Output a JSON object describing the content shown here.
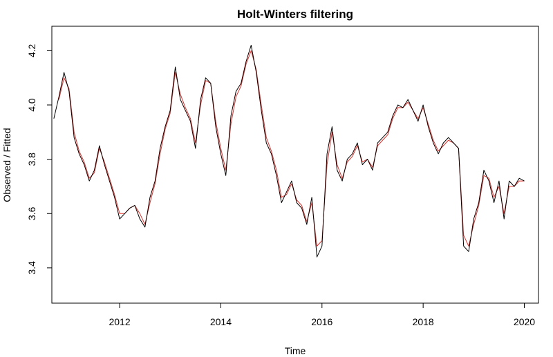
{
  "chart_data": {
    "type": "line",
    "title": "Holt-Winters filtering",
    "xlabel": "Time",
    "ylabel": "Observed / Fitted",
    "xlim": [
      2010.66,
      2020.28
    ],
    "ylim": [
      3.27,
      4.29
    ],
    "x_ticks": [
      2012,
      2014,
      2016,
      2018,
      2020
    ],
    "x_tick_labels": [
      "2012",
      "2014",
      "2016",
      "2018",
      "2020"
    ],
    "y_ticks": [
      3.4,
      3.6,
      3.8,
      4.0,
      4.2
    ],
    "y_tick_labels": [
      "3.4",
      "3.6",
      "3.8",
      "4.0",
      "4.2"
    ],
    "grid": false,
    "legend": "none",
    "series": [
      {
        "color": "#000000",
        "x": [
          2010.7,
          2010.8,
          2010.9,
          2011.0,
          2011.1,
          2011.2,
          2011.3,
          2011.4,
          2011.5,
          2011.6,
          2011.7,
          2011.8,
          2011.9,
          2012.0,
          2012.1,
          2012.2,
          2012.3,
          2012.4,
          2012.5,
          2012.6,
          2012.7,
          2012.8,
          2012.9,
          2013.0,
          2013.1,
          2013.2,
          2013.3,
          2013.4,
          2013.5,
          2013.6,
          2013.7,
          2013.8,
          2013.9,
          2014.0,
          2014.1,
          2014.2,
          2014.3,
          2014.4,
          2014.5,
          2014.6,
          2014.7,
          2014.8,
          2014.9,
          2015.0,
          2015.1,
          2015.2,
          2015.3,
          2015.4,
          2015.5,
          2015.6,
          2015.7,
          2015.8,
          2015.9,
          2016.0,
          2016.1,
          2016.2,
          2016.3,
          2016.4,
          2016.5,
          2016.6,
          2016.7,
          2016.8,
          2016.9,
          2017.0,
          2017.1,
          2017.2,
          2017.3,
          2017.4,
          2017.5,
          2017.6,
          2017.7,
          2017.8,
          2017.9,
          2018.0,
          2018.1,
          2018.2,
          2018.3,
          2018.4,
          2018.5,
          2018.6,
          2018.7,
          2018.8,
          2018.9,
          2019.0,
          2019.1,
          2019.2,
          2019.3,
          2019.4,
          2019.5,
          2019.6,
          2019.7,
          2019.8,
          2019.9,
          2020.0
        ],
        "values": [
          3.95,
          4.03,
          4.12,
          4.05,
          3.88,
          3.82,
          3.78,
          3.72,
          3.76,
          3.85,
          3.78,
          3.72,
          3.66,
          3.58,
          3.6,
          3.62,
          3.63,
          3.58,
          3.55,
          3.66,
          3.72,
          3.84,
          3.92,
          3.98,
          4.14,
          4.02,
          3.98,
          3.94,
          3.84,
          4.02,
          4.1,
          4.08,
          3.92,
          3.82,
          3.74,
          3.96,
          4.05,
          4.08,
          4.16,
          4.22,
          4.12,
          3.98,
          3.86,
          3.82,
          3.74,
          3.64,
          3.68,
          3.72,
          3.64,
          3.62,
          3.56,
          3.66,
          3.44,
          3.48,
          3.82,
          3.92,
          3.76,
          3.72,
          3.8,
          3.82,
          3.86,
          3.78,
          3.8,
          3.76,
          3.86,
          3.88,
          3.9,
          3.96,
          4.0,
          3.99,
          4.02,
          3.98,
          3.94,
          4.0,
          3.92,
          3.86,
          3.82,
          3.86,
          3.88,
          3.86,
          3.84,
          3.48,
          3.46,
          3.58,
          3.64,
          3.76,
          3.72,
          3.64,
          3.72,
          3.58,
          3.72,
          3.7,
          3.73,
          3.72
        ]
      },
      {
        "color": "#e0302a",
        "x": [
          2010.8,
          2010.9,
          2011.0,
          2011.1,
          2011.2,
          2011.3,
          2011.4,
          2011.5,
          2011.6,
          2011.7,
          2011.8,
          2011.9,
          2012.0,
          2012.1,
          2012.2,
          2012.3,
          2012.4,
          2012.5,
          2012.6,
          2012.7,
          2012.8,
          2012.9,
          2013.0,
          2013.1,
          2013.2,
          2013.3,
          2013.4,
          2013.5,
          2013.6,
          2013.7,
          2013.8,
          2013.9,
          2014.0,
          2014.1,
          2014.2,
          2014.3,
          2014.4,
          2014.5,
          2014.6,
          2014.7,
          2014.8,
          2014.9,
          2015.0,
          2015.1,
          2015.2,
          2015.3,
          2015.4,
          2015.5,
          2015.6,
          2015.7,
          2015.8,
          2015.9,
          2016.0,
          2016.1,
          2016.2,
          2016.3,
          2016.4,
          2016.5,
          2016.6,
          2016.7,
          2016.8,
          2016.9,
          2017.0,
          2017.1,
          2017.2,
          2017.3,
          2017.4,
          2017.5,
          2017.6,
          2017.7,
          2017.8,
          2017.9,
          2018.0,
          2018.1,
          2018.2,
          2018.3,
          2018.4,
          2018.5,
          2018.6,
          2018.7,
          2018.8,
          2018.9,
          2019.0,
          2019.1,
          2019.2,
          2019.3,
          2019.4,
          2019.5,
          2019.6,
          2019.7,
          2019.8,
          2019.9,
          2020.0
        ],
        "values": [
          4.02,
          4.1,
          4.06,
          3.9,
          3.83,
          3.79,
          3.73,
          3.75,
          3.84,
          3.79,
          3.73,
          3.67,
          3.6,
          3.6,
          3.62,
          3.63,
          3.6,
          3.56,
          3.64,
          3.71,
          3.82,
          3.91,
          3.97,
          4.12,
          4.04,
          3.99,
          3.95,
          3.86,
          4.0,
          4.09,
          4.08,
          3.94,
          3.84,
          3.76,
          3.93,
          4.03,
          4.07,
          4.15,
          4.2,
          4.13,
          4.0,
          3.88,
          3.83,
          3.76,
          3.66,
          3.67,
          3.71,
          3.65,
          3.63,
          3.57,
          3.64,
          3.48,
          3.5,
          3.78,
          3.9,
          3.78,
          3.73,
          3.79,
          3.81,
          3.85,
          3.79,
          3.8,
          3.77,
          3.85,
          3.87,
          3.89,
          3.95,
          3.99,
          3.99,
          4.01,
          3.98,
          3.95,
          3.99,
          3.93,
          3.87,
          3.83,
          3.85,
          3.87,
          3.86,
          3.84,
          3.52,
          3.48,
          3.56,
          3.63,
          3.74,
          3.73,
          3.66,
          3.7,
          3.6,
          3.7,
          3.7,
          3.72,
          3.72
        ]
      }
    ]
  }
}
